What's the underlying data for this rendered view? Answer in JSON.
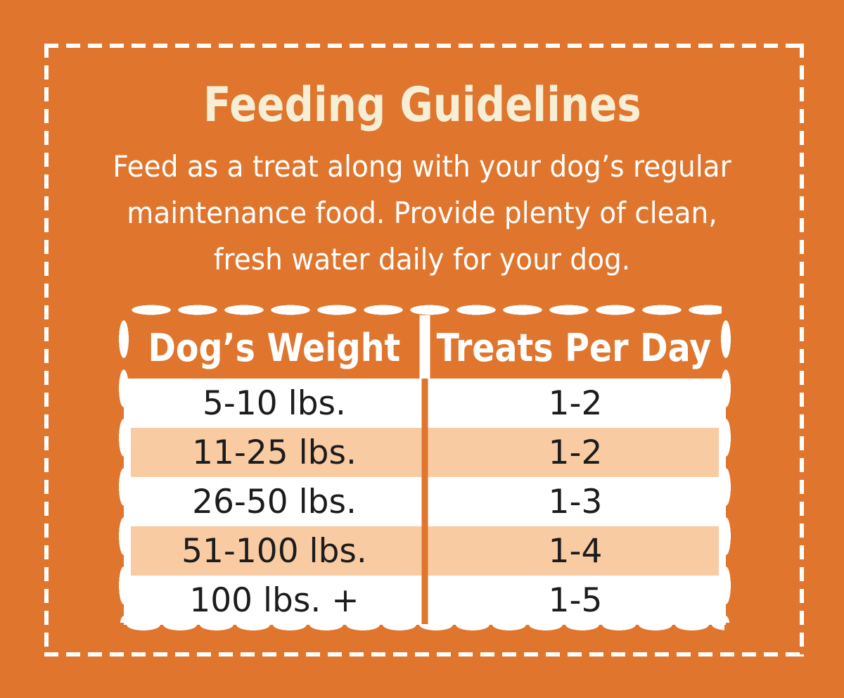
{
  "poster": {
    "background_color": "#E0752D",
    "border_color": "#FFFFFF"
  },
  "title": {
    "text": "Feeding Guidelines",
    "color": "#F6EFD6"
  },
  "intro": {
    "color": "#FFFFFF",
    "lines": [
      "Feed as a treat along with your dog’s regular",
      "maintenance food. Provide plenty of clean,",
      "fresh water daily for your dog."
    ]
  },
  "table": {
    "header": {
      "columns": [
        "Dog’s Weight",
        "Treats Per Day"
      ],
      "text_color": "#FFFFFF",
      "background_color": "#E0752D"
    },
    "alt_row_color": "#F9CBA2",
    "row_color": "#FFFFFF",
    "text_color": "#1C1C1C",
    "rows": [
      {
        "weight": "5-10 lbs.",
        "treats": "1-2"
      },
      {
        "weight": "11-25 lbs.",
        "treats": "1-2"
      },
      {
        "weight": "26-50 lbs.",
        "treats": "1-3"
      },
      {
        "weight": "51-100 lbs.",
        "treats": "1-4"
      },
      {
        "weight": "100 lbs. +",
        "treats": "1-5"
      }
    ]
  }
}
